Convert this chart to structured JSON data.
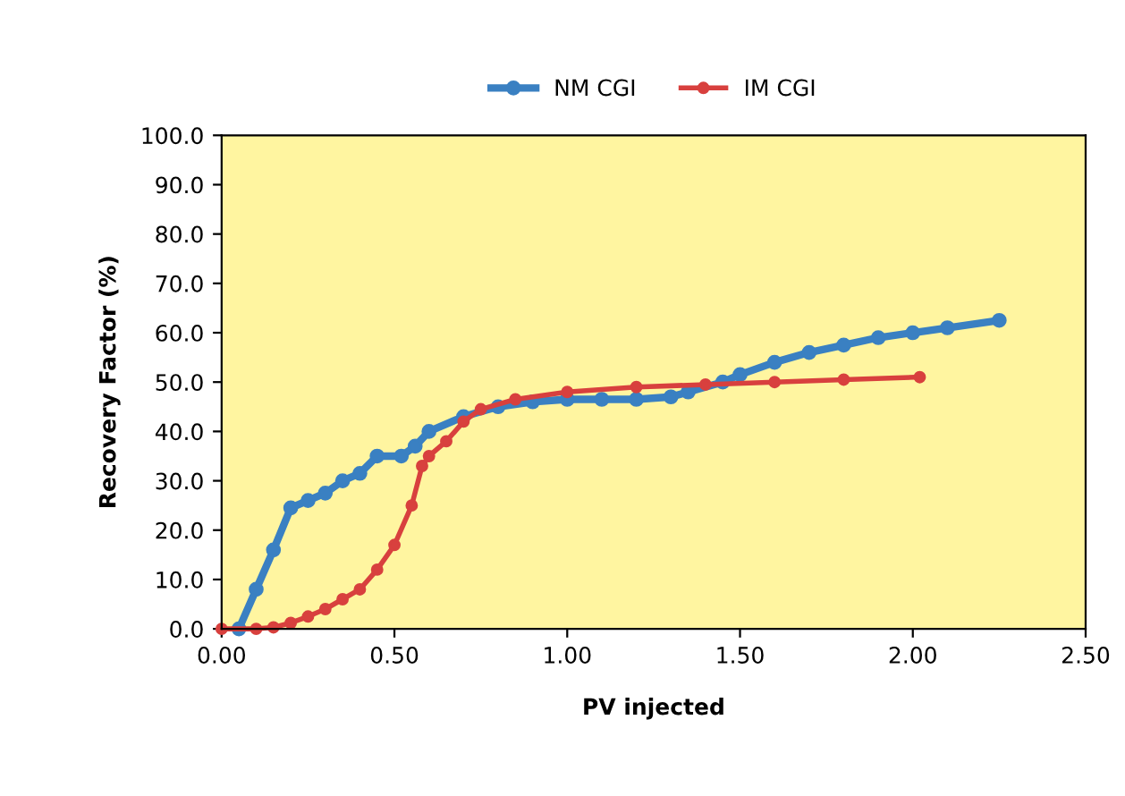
{
  "chart_data": {
    "type": "line",
    "xlabel": "PV injected",
    "ylabel": "Recovery Factor (%)",
    "xlim": [
      0,
      2.5
    ],
    "ylim": [
      0,
      100
    ],
    "xticks": [
      {
        "value": 0,
        "label": "0.00"
      },
      {
        "value": 0.5,
        "label": "0.50"
      },
      {
        "value": 1,
        "label": "1.00"
      },
      {
        "value": 1.5,
        "label": "1.50"
      },
      {
        "value": 2,
        "label": "2.00"
      },
      {
        "value": 2.5,
        "label": "2.50"
      }
    ],
    "yticks": [
      {
        "value": 0,
        "label": "0.0"
      },
      {
        "value": 10,
        "label": "10.0"
      },
      {
        "value": 20,
        "label": "20.0"
      },
      {
        "value": 30,
        "label": "30.0"
      },
      {
        "value": 40,
        "label": "40.0"
      },
      {
        "value": 50,
        "label": "50.0"
      },
      {
        "value": 60,
        "label": "60.0"
      },
      {
        "value": 70,
        "label": "70.0"
      },
      {
        "value": 80,
        "label": "80.0"
      },
      {
        "value": 90,
        "label": "90.0"
      },
      {
        "value": 100,
        "label": "100.0"
      }
    ],
    "grid": false,
    "legend": "top",
    "marker": "circle",
    "line_style": "solid",
    "series": [
      {
        "name": "NM CGI",
        "color": "#3a80c2",
        "x": [
          0.05,
          0.1,
          0.15,
          0.2,
          0.25,
          0.3,
          0.35,
          0.4,
          0.45,
          0.52,
          0.56,
          0.6,
          0.7,
          0.8,
          0.9,
          1.0,
          1.1,
          1.2,
          1.3,
          1.35,
          1.45,
          1.5,
          1.6,
          1.7,
          1.8,
          1.9,
          2.0,
          2.1,
          2.25
        ],
        "values": [
          0,
          8,
          16,
          24.5,
          26,
          27.5,
          30,
          31.5,
          35,
          35,
          37,
          40,
          43,
          45,
          46,
          46.5,
          46.5,
          46.5,
          47,
          48,
          50,
          51.5,
          54,
          56,
          57.5,
          59,
          60,
          61,
          62.5
        ]
      },
      {
        "name": "IM CGI",
        "color": "#d8403e",
        "x": [
          0,
          0.1,
          0.15,
          0.2,
          0.25,
          0.3,
          0.35,
          0.4,
          0.45,
          0.5,
          0.55,
          0.58,
          0.6,
          0.65,
          0.7,
          0.75,
          0.85,
          1.0,
          1.2,
          1.4,
          1.6,
          1.8,
          2.02
        ],
        "values": [
          0,
          0,
          0.3,
          1.2,
          2.5,
          4,
          6,
          8,
          12,
          17,
          25,
          33,
          35,
          38,
          42,
          44.5,
          46.5,
          48,
          49,
          49.5,
          50,
          50.5,
          51
        ]
      }
    ]
  }
}
